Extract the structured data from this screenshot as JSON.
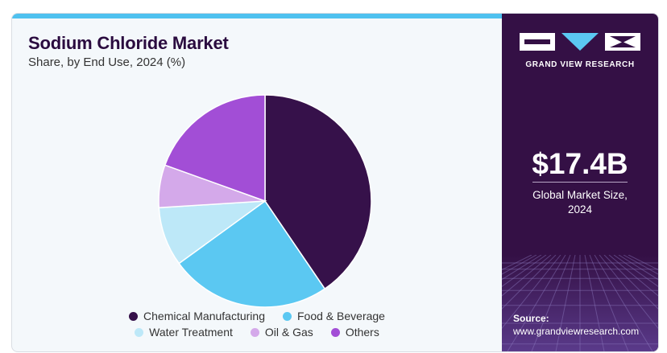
{
  "header": {
    "title": "Sodium Chloride Market",
    "subtitle": "Share, by End Use, 2024 (%)"
  },
  "brand": {
    "name": "GRAND VIEW RESEARCH",
    "accent": "#4fc1ef",
    "panel_color": "#341045"
  },
  "market": {
    "size": "$17.4B",
    "label_line1": "Global Market Size,",
    "label_line2": "2024"
  },
  "source": {
    "label": "Source:",
    "url": "www.grandviewresearch.com"
  },
  "chart_data": {
    "type": "pie",
    "title": "Sodium Chloride Market",
    "subtitle": "Share, by End Use, 2024 (%)",
    "start_angle_deg": 0,
    "direction": "clockwise",
    "legend_position": "bottom",
    "slices": [
      {
        "label": "Chemical Manufacturing",
        "value": 40.5,
        "color": "#36114a"
      },
      {
        "label": "Food & Beverage",
        "value": 24.5,
        "color": "#5bc8f2"
      },
      {
        "label": "Water Treatment",
        "value": 9.0,
        "color": "#bde8f8"
      },
      {
        "label": "Oil & Gas",
        "value": 6.5,
        "color": "#d4a9ea"
      },
      {
        "label": "Others",
        "value": 19.5,
        "color": "#a24ed6"
      }
    ],
    "legend_rows": [
      [
        "Chemical Manufacturing",
        "Food & Beverage"
      ],
      [
        "Water Treatment",
        "Oil & Gas",
        "Others"
      ]
    ]
  }
}
